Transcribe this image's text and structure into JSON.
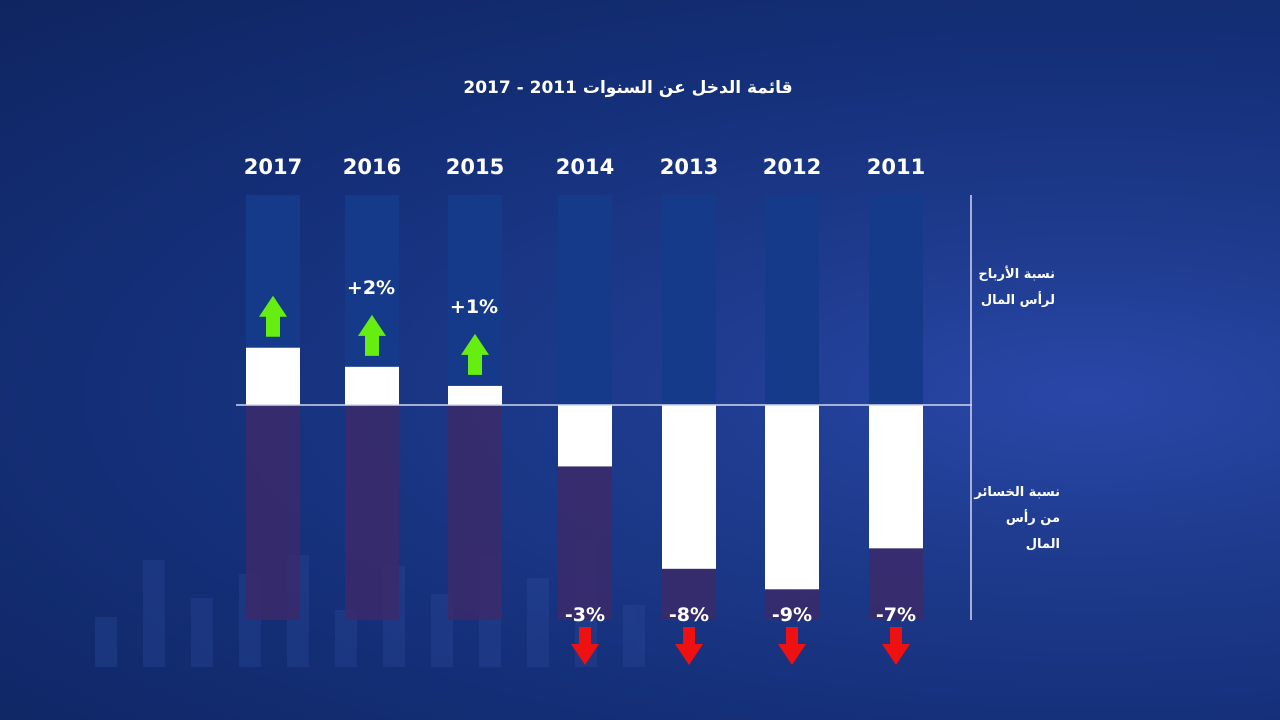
{
  "chart_data": {
    "type": "bar",
    "title": "قائمة الدخل عن السنوات 2011 - 2017",
    "categories": [
      "2017",
      "2016",
      "2015",
      "2014",
      "2013",
      "2012",
      "2011"
    ],
    "values": [
      3,
      2,
      1,
      -3,
      -8,
      -9,
      -7
    ],
    "data_labels": [
      "",
      "+2%",
      "+1%",
      "-3%",
      "-8%",
      "-9%",
      "-7%"
    ],
    "ylim": [
      -9,
      9
    ],
    "ylabel_positive": [
      "نسبة الأرباح",
      "لرأس المال"
    ],
    "ylabel_negative": [
      "نسبة الخسائر",
      "من رأس المال"
    ]
  },
  "colors": {
    "bar": "#ffffff",
    "positive_track": "#163a8a",
    "negative_track": "#3b2a6a",
    "up_arrow": "#66ee11",
    "down_arrow": "#ee1111",
    "axis": "#cfd8ee"
  },
  "icons": {
    "up": "arrow-up-icon",
    "down": "arrow-down-icon"
  }
}
